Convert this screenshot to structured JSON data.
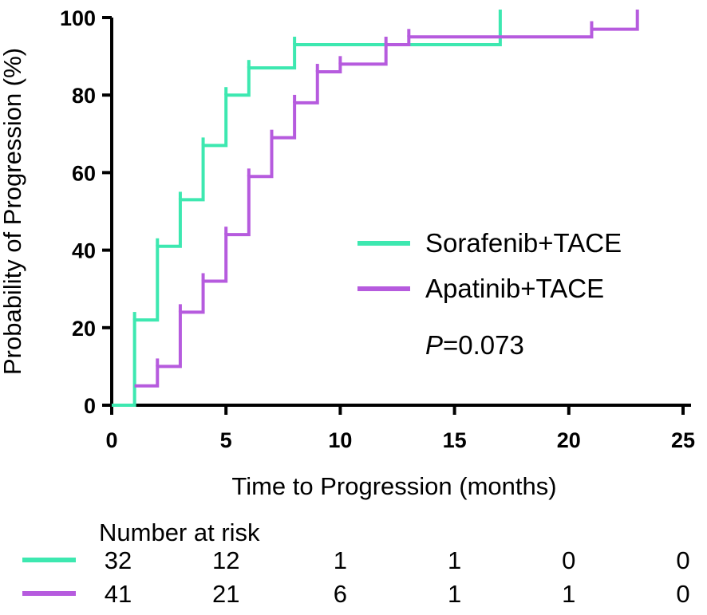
{
  "chart_data": {
    "type": "line",
    "subtype": "kaplan-meier-step",
    "title": "",
    "xlabel": "Time to Progression (months)",
    "ylabel": "Probability of Progression (%)",
    "xlim": [
      0,
      25
    ],
    "ylim": [
      0,
      100
    ],
    "xticks": [
      "0",
      "5",
      "10",
      "15",
      "20",
      "25"
    ],
    "yticks": [
      "0",
      "20",
      "40",
      "60",
      "80",
      "100"
    ],
    "grid": false,
    "legend_position": "center-right",
    "series": [
      {
        "name": "Sorafenib+TACE",
        "color": "#3de8b0",
        "x": [
          0,
          1,
          2,
          3,
          4,
          5,
          6,
          8,
          17
        ],
        "y": [
          0,
          22,
          41,
          53,
          67,
          80,
          87,
          93,
          100
        ],
        "censor_x": [
          1,
          2,
          3,
          4,
          5,
          6,
          8,
          17
        ],
        "censor_y": [
          22,
          41,
          53,
          67,
          80,
          87,
          93,
          100
        ]
      },
      {
        "name": "Apatinib+TACE",
        "color": "#b65bde",
        "x": [
          1,
          2,
          3,
          4,
          5,
          6,
          7,
          8,
          9,
          10,
          12,
          13,
          21,
          23
        ],
        "y": [
          5,
          10,
          24,
          32,
          44,
          59,
          69,
          78,
          86,
          88,
          93,
          95,
          97,
          100
        ],
        "censor_x": [
          2,
          3,
          4,
          5,
          6,
          7,
          8,
          9,
          10,
          12,
          13,
          21,
          23
        ],
        "censor_y": [
          10,
          24,
          32,
          44,
          59,
          69,
          78,
          86,
          88,
          93,
          95,
          97,
          100
        ]
      }
    ],
    "annotation": {
      "p_label": "P",
      "p_value": "=0.073"
    },
    "risk_table": {
      "title": "Number at risk",
      "time_points": [
        0,
        5,
        10,
        15,
        20,
        25
      ],
      "rows": [
        {
          "name": "Sorafenib+TACE",
          "color": "#3de8b0",
          "values": [
            "32",
            "12",
            "1",
            "1",
            "0",
            "0"
          ]
        },
        {
          "name": "Apatinib+TACE",
          "color": "#b65bde",
          "values": [
            "41",
            "21",
            "6",
            "1",
            "1",
            "0"
          ]
        }
      ]
    }
  }
}
